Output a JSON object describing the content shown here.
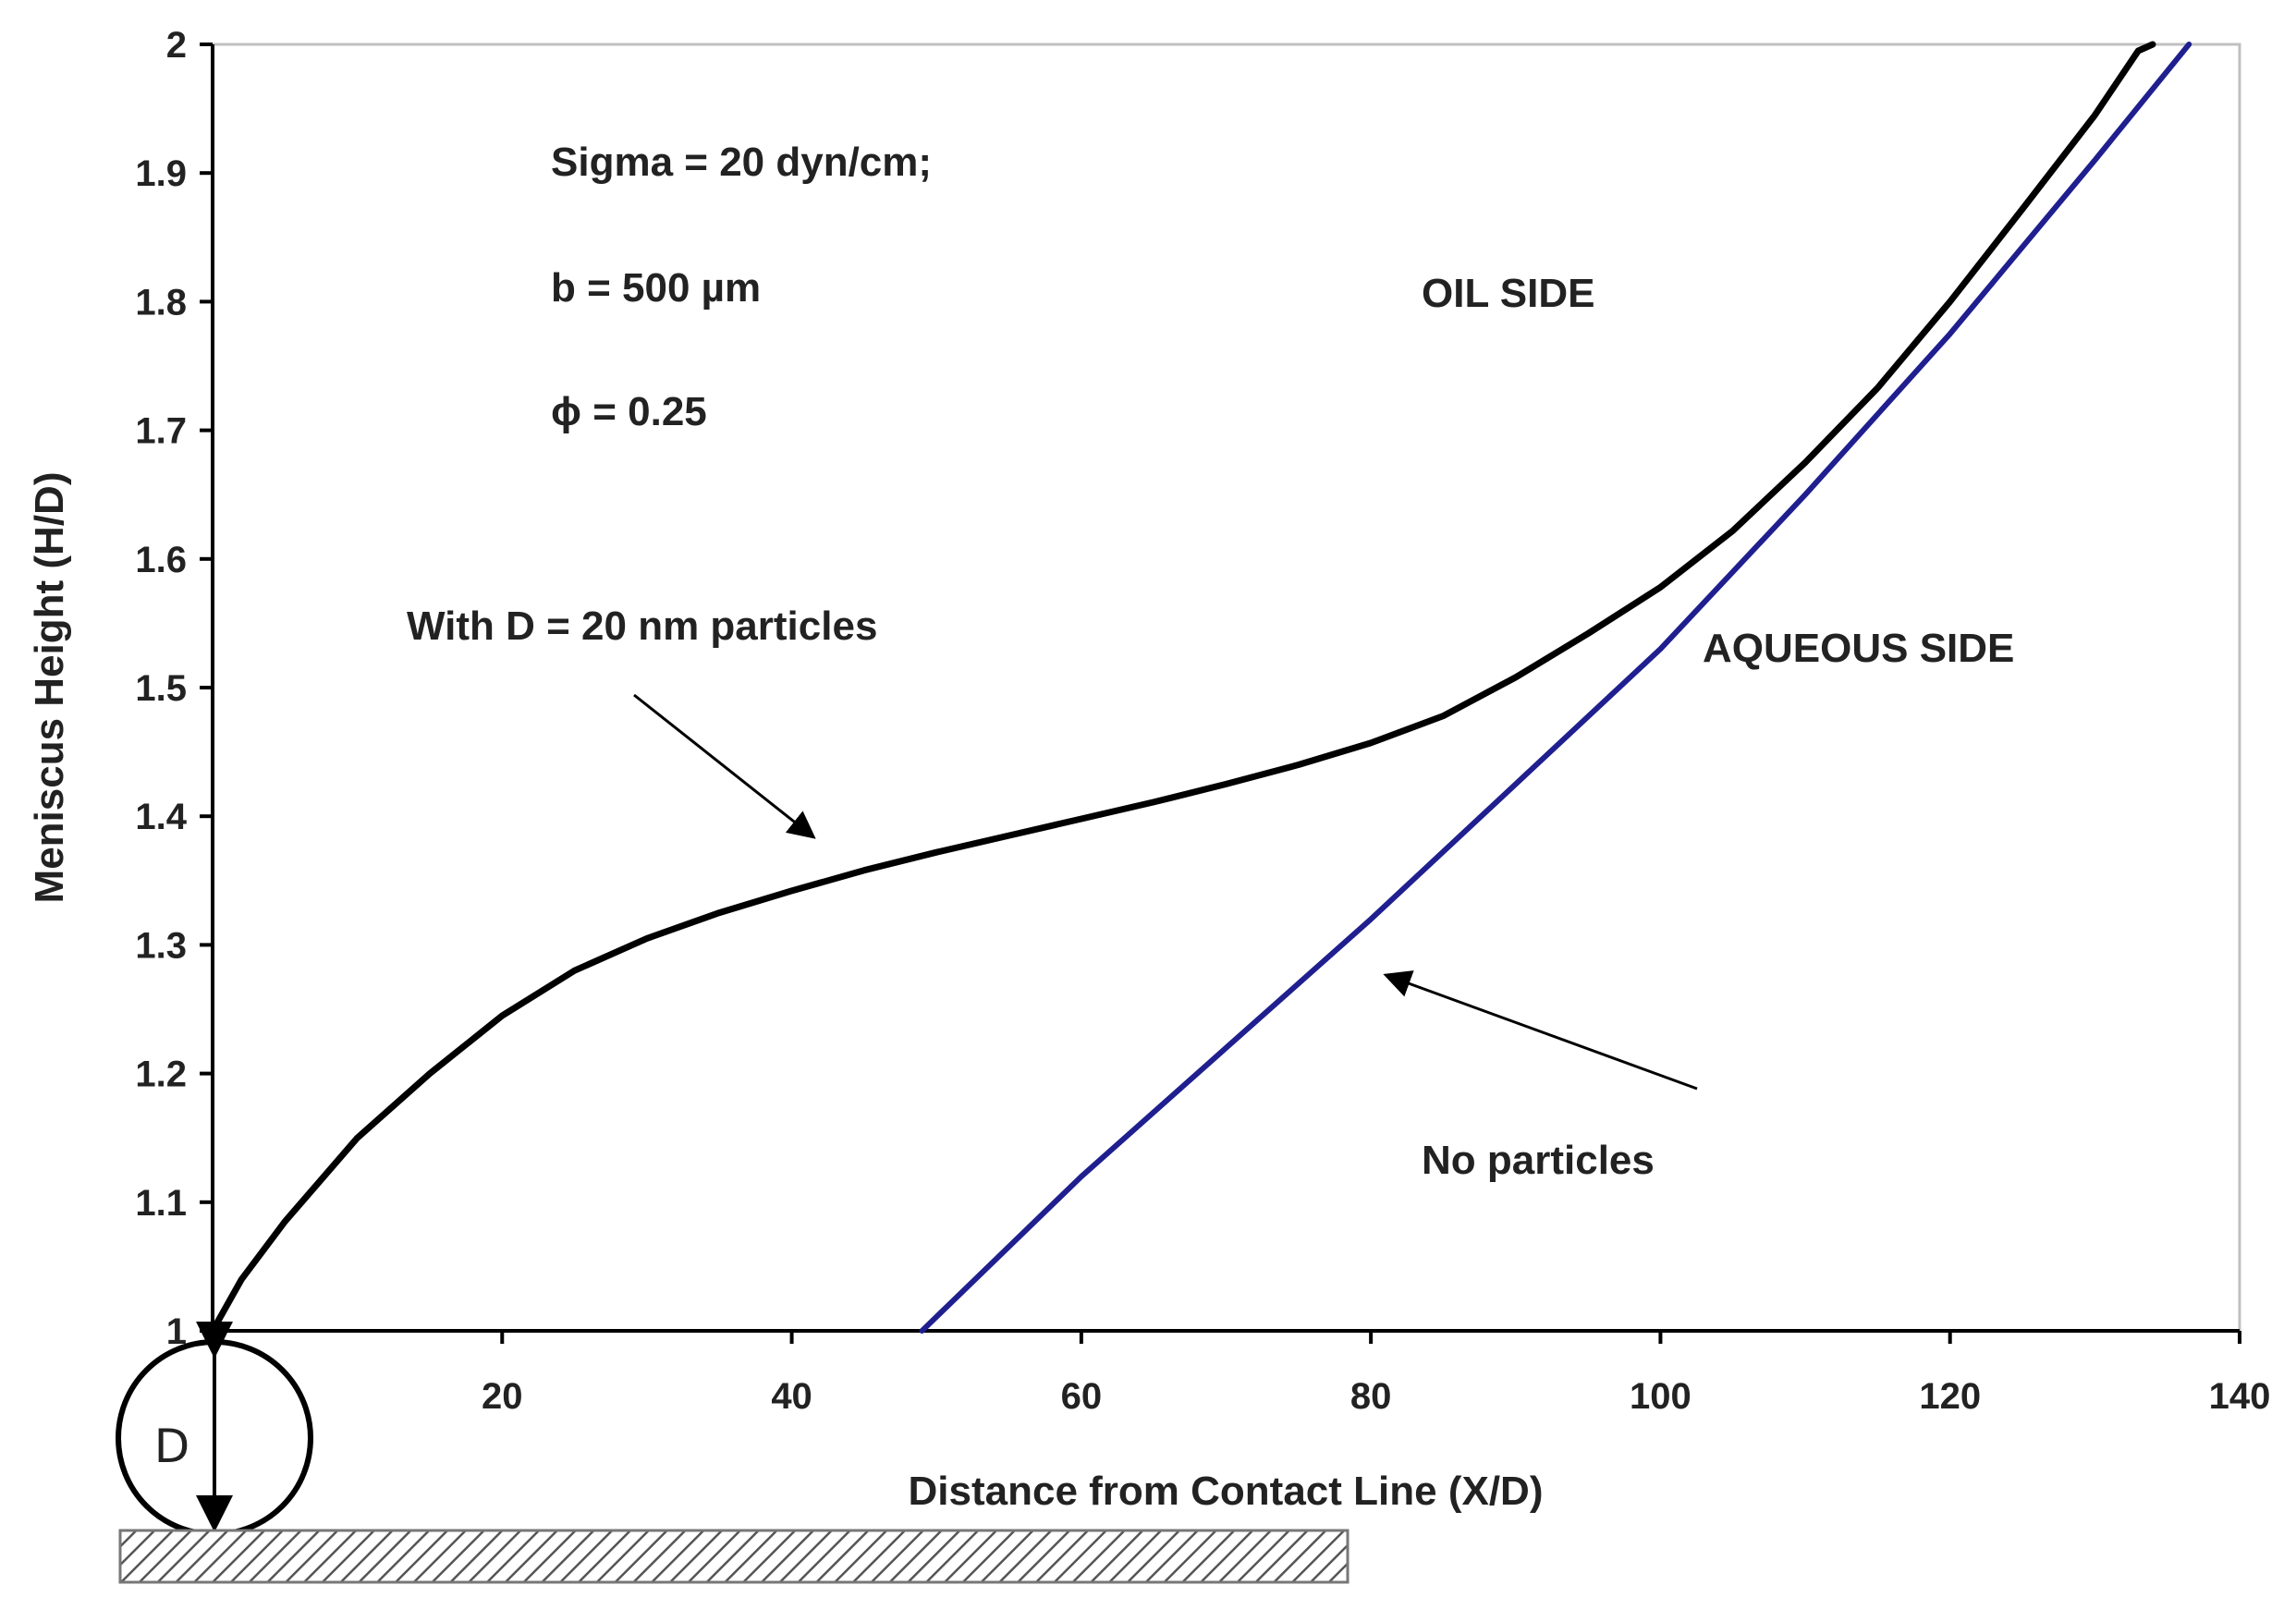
{
  "chart_data": {
    "type": "line",
    "title": "",
    "xlabel": "Distance from Contact Line (X/D)",
    "ylabel": "Meniscus Height (H/D)",
    "xlim": [
      0,
      140
    ],
    "ylim": [
      1,
      2
    ],
    "x_ticks": [
      20,
      40,
      60,
      80,
      100,
      120,
      140
    ],
    "x_tick_labels": [
      "20",
      "40",
      "60",
      "80",
      "100",
      "120",
      "140"
    ],
    "y_ticks": [
      1,
      1.1,
      1.2,
      1.3,
      1.4,
      1.5,
      1.6,
      1.7,
      1.8,
      1.9,
      2
    ],
    "y_tick_labels": [
      "1",
      "1.1",
      "1.2",
      "1.3",
      "1.4",
      "1.5",
      "1.6",
      "1.7",
      "1.8",
      "1.9",
      "2"
    ],
    "grid": false,
    "legend": "none",
    "series": [
      {
        "label_text": "With D = 20 nm particles",
        "color": "#000000",
        "points": [
          [
            0,
            1.0
          ],
          [
            2,
            1.04
          ],
          [
            5,
            1.085
          ],
          [
            10,
            1.15
          ],
          [
            15,
            1.2
          ],
          [
            20,
            1.245
          ],
          [
            25,
            1.28
          ],
          [
            30,
            1.305
          ],
          [
            35,
            1.325
          ],
          [
            40,
            1.342
          ],
          [
            45,
            1.358
          ],
          [
            50,
            1.372
          ],
          [
            55,
            1.385
          ],
          [
            60,
            1.398
          ],
          [
            65,
            1.411
          ],
          [
            70,
            1.425
          ],
          [
            75,
            1.44
          ],
          [
            80,
            1.457
          ],
          [
            85,
            1.478
          ],
          [
            90,
            1.508
          ],
          [
            95,
            1.542
          ],
          [
            100,
            1.578
          ],
          [
            105,
            1.622
          ],
          [
            110,
            1.675
          ],
          [
            115,
            1.733
          ],
          [
            120,
            1.8
          ],
          [
            125,
            1.872
          ],
          [
            130,
            1.945
          ],
          [
            133,
            1.995
          ],
          [
            134,
            2.0
          ]
        ]
      },
      {
        "label_text": "No particles",
        "color": "#1f1f8f",
        "points": [
          [
            49,
            1.0
          ],
          [
            60,
            1.12
          ],
          [
            70,
            1.22
          ],
          [
            80,
            1.32
          ],
          [
            90,
            1.425
          ],
          [
            100,
            1.53
          ],
          [
            110,
            1.65
          ],
          [
            120,
            1.775
          ],
          [
            130,
            1.91
          ],
          [
            136.5,
            2.0
          ]
        ]
      }
    ],
    "annotations": {
      "params": [
        "Sigma = 20 dyn/cm;",
        "b = 500 µm",
        "ϕ = 0.25"
      ],
      "oil_side": "OIL SIDE",
      "aqueous_side": "AQUEOUS SIDE",
      "with_particles": "With D = 20 nm particles",
      "no_particles": "No particles",
      "diameter_label": "D"
    }
  }
}
